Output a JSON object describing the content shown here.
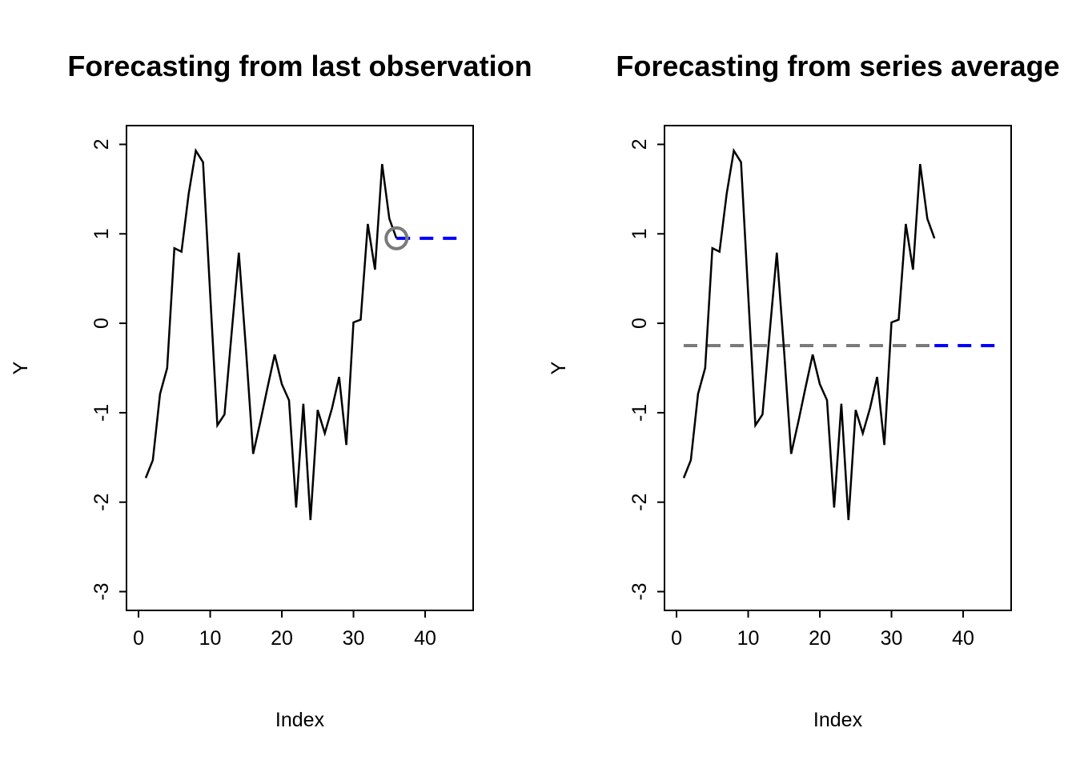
{
  "page": {
    "background": "#ffffff",
    "foreground": "#000000"
  },
  "chart_data": [
    {
      "type": "line",
      "title": "Forecasting from last observation",
      "xlabel": "Index",
      "ylabel": "Y",
      "x": [
        1,
        2,
        3,
        4,
        5,
        6,
        7,
        8,
        9,
        10,
        11,
        12,
        13,
        14,
        15,
        16,
        17,
        18,
        19,
        20,
        21,
        22,
        23,
        24,
        25,
        26,
        27,
        28,
        29,
        30,
        31,
        32,
        33,
        34,
        35,
        36
      ],
      "values": [
        -1.73,
        -1.53,
        -0.79,
        -0.5,
        0.84,
        0.8,
        1.45,
        1.93,
        1.8,
        0.33,
        -1.14,
        -1.02,
        -0.1,
        0.79,
        -0.3,
        -1.46,
        -1.1,
        -0.72,
        -0.35,
        -0.68,
        -0.86,
        -2.06,
        -0.9,
        -2.2,
        -0.97,
        -1.23,
        -0.95,
        -0.6,
        -1.36,
        0.01,
        0.04,
        1.11,
        0.6,
        1.78,
        1.17,
        0.95
      ],
      "series_color": "#000000",
      "xticks": [
        0,
        10,
        20,
        30,
        40
      ],
      "yticks": [
        -3,
        -2,
        -1,
        0,
        1,
        2
      ],
      "xlim": [
        -1.68,
        46.7
      ],
      "ylim": [
        -3.21,
        2.21
      ],
      "grid": false,
      "overlays": [
        {
          "kind": "forecast-dashed-line",
          "y": 0.95,
          "x_from": 36,
          "x_to": 45,
          "color": "#0000ff"
        },
        {
          "kind": "last-observation-marker",
          "x": 36,
          "y": 0.95,
          "color": "#7a7a7a"
        }
      ]
    },
    {
      "type": "line",
      "title": "Forecasting from series average",
      "xlabel": "Index",
      "ylabel": "Y",
      "x": [
        1,
        2,
        3,
        4,
        5,
        6,
        7,
        8,
        9,
        10,
        11,
        12,
        13,
        14,
        15,
        16,
        17,
        18,
        19,
        20,
        21,
        22,
        23,
        24,
        25,
        26,
        27,
        28,
        29,
        30,
        31,
        32,
        33,
        34,
        35,
        36
      ],
      "values": [
        -1.73,
        -1.53,
        -0.79,
        -0.5,
        0.84,
        0.8,
        1.45,
        1.93,
        1.8,
        0.33,
        -1.14,
        -1.02,
        -0.1,
        0.79,
        -0.3,
        -1.46,
        -1.1,
        -0.72,
        -0.35,
        -0.68,
        -0.86,
        -2.06,
        -0.9,
        -2.2,
        -0.97,
        -1.23,
        -0.95,
        -0.6,
        -1.36,
        0.01,
        0.04,
        1.11,
        0.6,
        1.78,
        1.17,
        0.95
      ],
      "series_color": "#000000",
      "xticks": [
        0,
        10,
        20,
        30,
        40
      ],
      "yticks": [
        -3,
        -2,
        -1,
        0,
        1,
        2
      ],
      "xlim": [
        -1.68,
        46.7
      ],
      "ylim": [
        -3.21,
        2.21
      ],
      "grid": false,
      "overlays": [
        {
          "kind": "mean-dashed-line",
          "y": -0.25,
          "x_from": 1,
          "x_to": 36,
          "color": "#7a7a7a"
        },
        {
          "kind": "forecast-dashed-line",
          "y": -0.25,
          "x_from": 36,
          "x_to": 45,
          "color": "#0000ff"
        }
      ]
    }
  ]
}
